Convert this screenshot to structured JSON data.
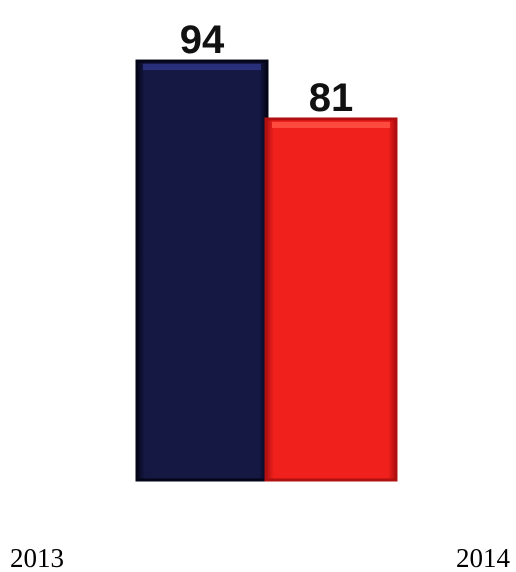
{
  "chart_data": {
    "type": "bar",
    "categories": [
      "2013",
      "2014"
    ],
    "values": [
      94,
      81
    ],
    "data_labels": [
      "94",
      "81"
    ],
    "bar_colors": [
      "#151843",
      "#f0201c"
    ],
    "bar_highlight_colors": [
      "#2a2f7a",
      "#ff4a40"
    ],
    "bar_edge_colors": [
      "#05051a",
      "#b01010"
    ],
    "title": "",
    "xlabel": "",
    "ylabel": "",
    "ylim": [
      0,
      100
    ],
    "grid": false,
    "legend": "none"
  }
}
